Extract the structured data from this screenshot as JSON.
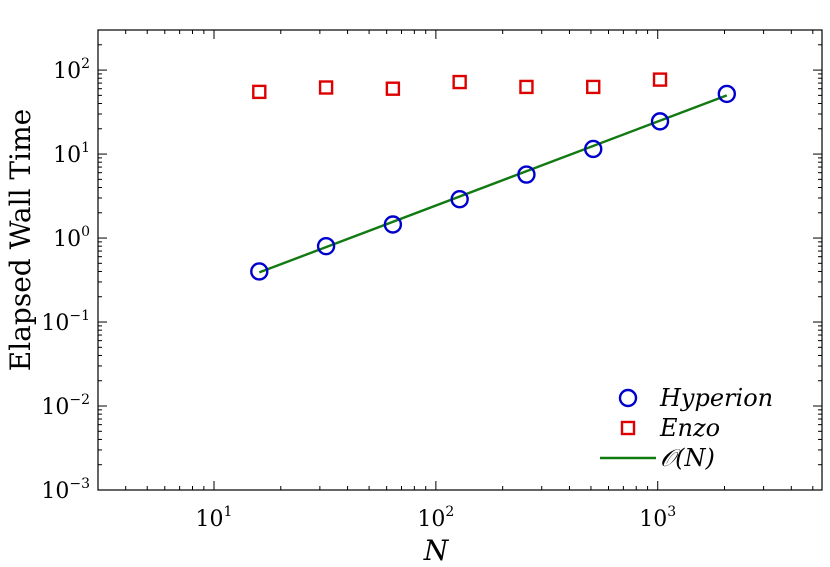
{
  "chart_data": {
    "type": "scatter",
    "title": "",
    "xlabel": "N",
    "ylabel": "Elapsed Wall Time",
    "x_scale": "log",
    "y_scale": "log",
    "xlim": [
      3,
      5500
    ],
    "ylim": [
      0.001,
      300
    ],
    "x_ticks": [
      {
        "value": 10,
        "base": "10",
        "exp": "1"
      },
      {
        "value": 100,
        "base": "10",
        "exp": "2"
      },
      {
        "value": 1000,
        "base": "10",
        "exp": "3"
      }
    ],
    "y_ticks": [
      {
        "value": 0.001,
        "base": "10",
        "exp": "−3"
      },
      {
        "value": 0.01,
        "base": "10",
        "exp": "−2"
      },
      {
        "value": 0.1,
        "base": "10",
        "exp": "−1"
      },
      {
        "value": 1,
        "base": "10",
        "exp": "0"
      },
      {
        "value": 10,
        "base": "10",
        "exp": "1"
      },
      {
        "value": 100,
        "base": "10",
        "exp": "2"
      }
    ],
    "grid": false,
    "legend_position": "bottom-right",
    "series": [
      {
        "name": "Hyperion",
        "kind": "scatter",
        "marker": "circle",
        "color": "#0000cc",
        "x": [
          16,
          32,
          64,
          128,
          256,
          512,
          1024,
          2048
        ],
        "y": [
          0.4,
          0.8,
          1.45,
          2.9,
          5.7,
          11.5,
          24.5,
          52
        ]
      },
      {
        "name": "Enzo",
        "kind": "scatter",
        "marker": "square",
        "color": "#dd0000",
        "x": [
          16,
          32,
          64,
          128,
          256,
          512,
          1024
        ],
        "y": [
          55,
          62,
          60,
          72,
          63,
          63,
          77
        ]
      },
      {
        "name": "𝒪(N)",
        "kind": "line",
        "color": "#117a11",
        "x": [
          16,
          2048
        ],
        "y": [
          0.39,
          50
        ]
      }
    ]
  }
}
